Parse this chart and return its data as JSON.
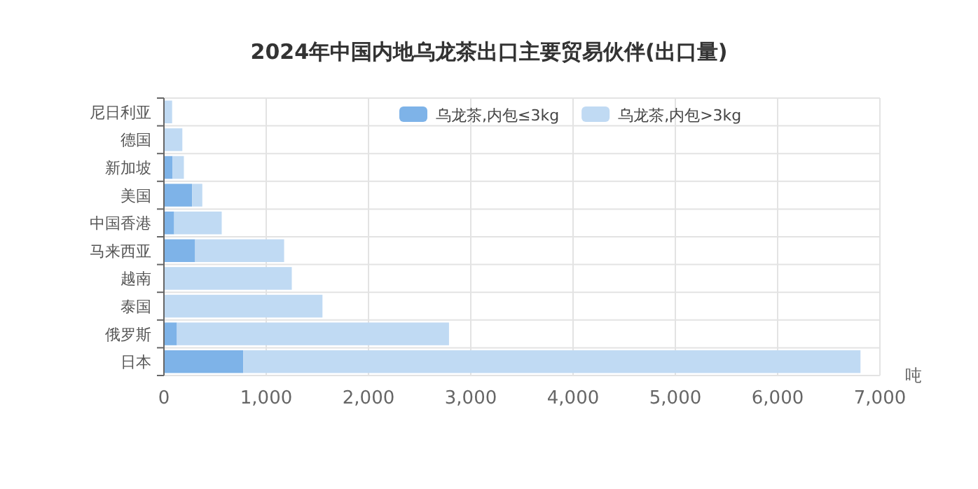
{
  "chart_data": {
    "type": "bar",
    "orientation": "horizontal",
    "stacked": true,
    "title": "2024年中国内地乌龙茶出口主要贸易伙伴(出口量)",
    "xlabel": "吨",
    "categories": [
      "尼日利亚",
      "德国",
      "新加坡",
      "美国",
      "中国香港",
      "马来西亚",
      "越南",
      "泰国",
      "俄罗斯",
      "日本"
    ],
    "series": [
      {
        "name": "乌龙茶,内包≤3kg",
        "color": "#7eb3e8",
        "values": [
          0,
          0,
          85,
          275,
          100,
          305,
          0,
          0,
          127,
          775
        ]
      },
      {
        "name": "乌龙茶,内包>3kg",
        "color": "#c0daf3",
        "values": [
          80,
          180,
          110,
          100,
          465,
          870,
          1250,
          1550,
          2660,
          6035
        ]
      }
    ],
    "xlim": [
      0,
      7000
    ],
    "xticks": [
      {
        "value": 0,
        "label": "0"
      },
      {
        "value": 1000,
        "label": "1,000"
      },
      {
        "value": 2000,
        "label": "2,000"
      },
      {
        "value": 3000,
        "label": "3,000"
      },
      {
        "value": 4000,
        "label": "4,000"
      },
      {
        "value": 5000,
        "label": "5,000"
      },
      {
        "value": 6000,
        "label": "6,000"
      },
      {
        "value": 7000,
        "label": "7,000"
      }
    ],
    "grid": true,
    "legend": "top right"
  }
}
